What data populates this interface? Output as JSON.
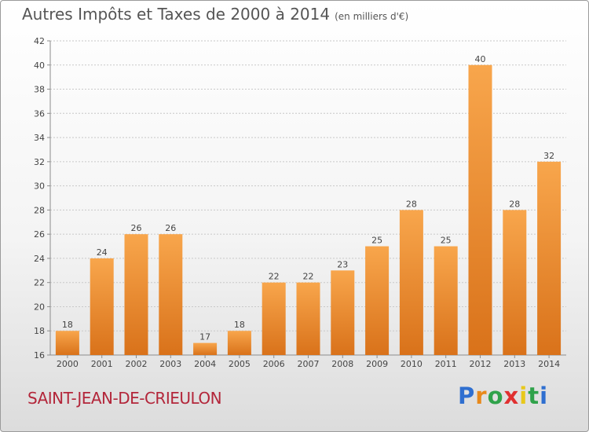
{
  "header": {
    "title": "Autres Impôts et Taxes de 2000 à 2014",
    "unit": "(en milliers d'€)"
  },
  "footer": {
    "commune": "SAINT-JEAN-DE-CRIEULON",
    "brand_letters": [
      "P",
      "r",
      "o",
      "x",
      "i",
      "t",
      "i"
    ],
    "brand_colors": [
      "#2f6fd0",
      "#e8891b",
      "#2fa24a",
      "#e03030",
      "#e8c81b",
      "#2fa24a",
      "#2f6fd0"
    ]
  },
  "colors": {
    "bar_light": "#f8a64c",
    "bar_dark": "#d9721a",
    "axis": "#8c8c8c",
    "grid": "#c8c8c8",
    "text": "#444444"
  },
  "chart_data": {
    "type": "bar",
    "title": "Autres Impôts et Taxes de 2000 à 2014",
    "subtitle": "(en milliers d'€)",
    "categories": [
      "2000",
      "2001",
      "2002",
      "2003",
      "2004",
      "2005",
      "2006",
      "2007",
      "2008",
      "2009",
      "2010",
      "2011",
      "2012",
      "2013",
      "2014"
    ],
    "values": [
      18,
      24,
      26,
      26,
      17,
      18,
      22,
      22,
      23,
      25,
      28,
      25,
      40,
      28,
      32
    ],
    "ylim": [
      16,
      42
    ],
    "yticks": [
      16,
      18,
      20,
      22,
      24,
      26,
      28,
      30,
      32,
      34,
      36,
      38,
      40,
      42
    ],
    "grid": "horizontal",
    "xlabel": "",
    "ylabel": ""
  }
}
